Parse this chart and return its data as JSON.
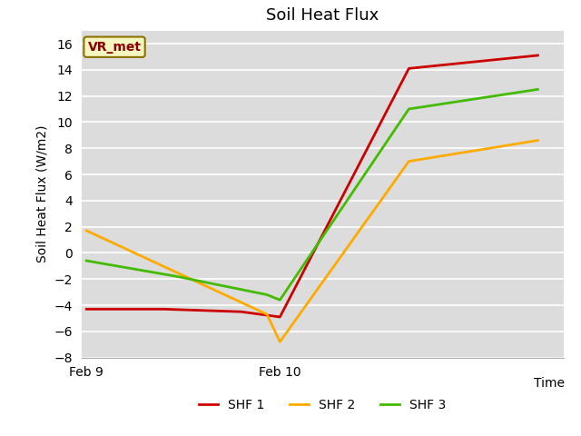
{
  "title": "Soil Heat Flux",
  "ylabel": "Soil Heat Flux (W/m2)",
  "xlabel": "Time",
  "ylim": [
    -8,
    17
  ],
  "yticks": [
    -8,
    -6,
    -4,
    -2,
    0,
    2,
    4,
    6,
    8,
    10,
    12,
    14,
    16
  ],
  "annotation": "VR_met",
  "plot_bg_color": "#dcdcdc",
  "fig_bg_color": "#ffffff",
  "shf1_x": [
    0.0,
    0.3,
    0.6,
    0.75,
    1.25,
    1.75
  ],
  "shf1_y": [
    -4.3,
    -4.3,
    -4.5,
    -4.9,
    14.1,
    15.1
  ],
  "shf2_x": [
    0.0,
    0.35,
    0.7,
    0.75,
    1.25,
    1.75
  ],
  "shf2_y": [
    1.7,
    -1.5,
    -4.7,
    -6.8,
    7.0,
    8.6
  ],
  "shf3_x": [
    0.0,
    0.35,
    0.7,
    0.75,
    1.25,
    1.75
  ],
  "shf3_y": [
    -0.6,
    -1.8,
    -3.2,
    -3.6,
    11.0,
    12.5
  ],
  "shf1_color": "#cc0000",
  "shf2_color": "#ffaa00",
  "shf3_color": "#44bb00",
  "linewidth": 2.0,
  "xlim": [
    -0.02,
    1.85
  ],
  "xtick_positions": [
    0.0,
    0.75
  ],
  "xtick_labels": [
    "Feb 9",
    "Feb 10"
  ],
  "legend_labels": [
    "SHF 1",
    "SHF 2",
    "SHF 3"
  ],
  "title_fontsize": 13,
  "axis_label_fontsize": 10,
  "tick_fontsize": 10,
  "annotation_fontsize": 10,
  "annotation_color": "#8b0000",
  "annotation_bg": "#f5f5c0",
  "annotation_edge": "#8b7000",
  "grid_color": "#ffffff",
  "grid_lw": 1.2
}
